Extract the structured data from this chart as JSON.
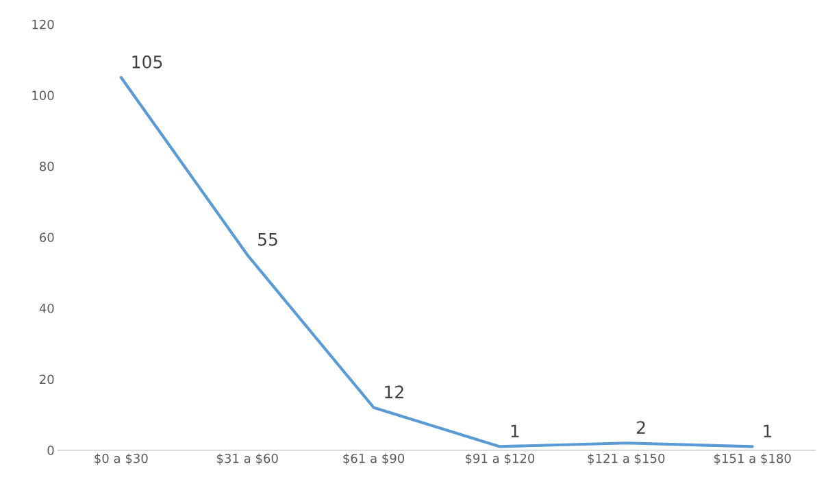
{
  "chart_data": {
    "type": "line",
    "categories": [
      "$0 a $30",
      "$31 a $60",
      "$61 a $90",
      "$91 a $120",
      "$121 a $150",
      "$151 a $180"
    ],
    "series": [
      {
        "color": "#5b9bd5",
        "values": [
          105,
          55,
          12,
          1,
          2,
          1
        ]
      }
    ],
    "ylim": [
      0,
      120
    ],
    "yticks": [
      0,
      20,
      40,
      60,
      80,
      100,
      120
    ],
    "data_labels": true,
    "grid": false,
    "legend": false,
    "marker": "none",
    "line_style": "solid"
  }
}
